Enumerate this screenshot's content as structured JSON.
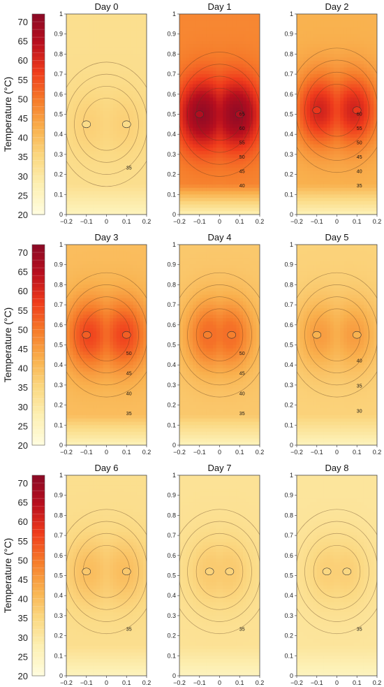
{
  "chart_data": {
    "type": "heatmap",
    "colorbar": {
      "label": "Temperature (°C)",
      "range": [
        20,
        72
      ],
      "ticks": [
        20,
        25,
        30,
        35,
        40,
        45,
        50,
        55,
        60,
        65,
        70
      ],
      "colors": [
        "#fffde0",
        "#fdf0b4",
        "#fbd983",
        "#f9b14e",
        "#f67b2a",
        "#ef3b1c",
        "#b80f1e",
        "#8b0a26"
      ]
    },
    "x_ticks": [
      "−0.2",
      "−0.1",
      "0",
      "0.1",
      "0.2"
    ],
    "y_ticks": [
      "0",
      "0.1",
      "0.2",
      "0.3",
      "0.4",
      "0.5",
      "0.6",
      "0.7",
      "0.8",
      "0.9",
      "1"
    ],
    "xlim": [
      -0.2,
      0.2
    ],
    "ylim": [
      0,
      1
    ],
    "panels": [
      {
        "title": "Day 0",
        "bg": 33,
        "peak": 36.5,
        "peak_y": 0.45,
        "lobe_x": 0.1,
        "inner": 34,
        "contour_labels": [
          "35"
        ]
      },
      {
        "title": "Day 1",
        "bg": 48,
        "peak": 70,
        "peak_y": 0.5,
        "lobe_x": 0.1,
        "inner": 66,
        "contour_labels": [
          "40",
          "45",
          "50",
          "55",
          "60",
          "65"
        ]
      },
      {
        "title": "Day 2",
        "bg": 42,
        "peak": 61,
        "peak_y": 0.52,
        "lobe_x": 0.1,
        "inner": 58,
        "contour_labels": [
          "35",
          "40",
          "45",
          "50",
          "55",
          "60"
        ]
      },
      {
        "title": "Day 3",
        "bg": 40,
        "peak": 56,
        "peak_y": 0.55,
        "lobe_x": 0.1,
        "inner": 53,
        "contour_labels": [
          "35",
          "40",
          "45",
          "50"
        ]
      },
      {
        "title": "Day 4",
        "bg": 38,
        "peak": 51,
        "peak_y": 0.55,
        "lobe_x": 0.06,
        "inner": 49,
        "contour_labels": [
          "35",
          "40",
          "45",
          "50"
        ]
      },
      {
        "title": "Day 5",
        "bg": 36,
        "peak": 45,
        "peak_y": 0.55,
        "lobe_x": 0.1,
        "inner": 42,
        "contour_labels": [
          "30",
          "35",
          "40"
        ]
      },
      {
        "title": "Day 6",
        "bg": 33,
        "peak": 40,
        "peak_y": 0.52,
        "lobe_x": 0.1,
        "inner": 38,
        "contour_labels": [
          "35"
        ]
      },
      {
        "title": "Day 7",
        "bg": 32,
        "peak": 37.5,
        "peak_y": 0.52,
        "lobe_x": 0.05,
        "inner": 36,
        "contour_labels": [
          "35"
        ]
      },
      {
        "title": "Day 8",
        "bg": 31,
        "peak": 36.5,
        "peak_y": 0.52,
        "lobe_x": 0.05,
        "inner": 35,
        "contour_labels": [
          "35"
        ]
      }
    ]
  }
}
